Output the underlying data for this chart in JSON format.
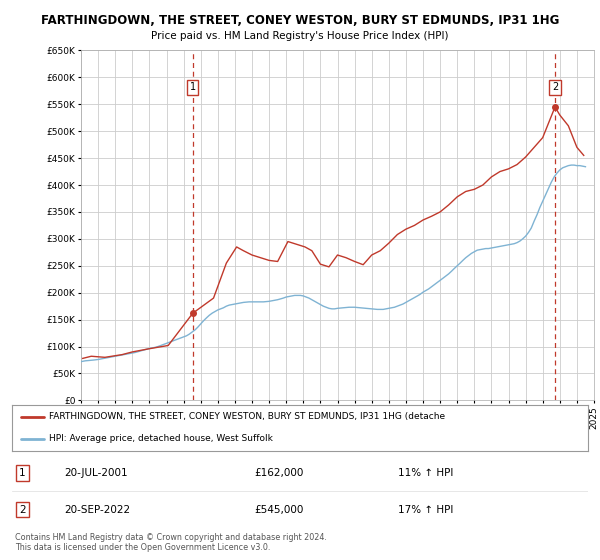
{
  "title": "FARTHINGDOWN, THE STREET, CONEY WESTON, BURY ST EDMUNDS, IP31 1HG",
  "subtitle": "Price paid vs. HM Land Registry's House Price Index (HPI)",
  "legend_line1": "FARTHINGDOWN, THE STREET, CONEY WESTON, BURY ST EDMUNDS, IP31 1HG (detache",
  "legend_line2": "HPI: Average price, detached house, West Suffolk",
  "annotation1_label": "1",
  "annotation1_date": "20-JUL-2001",
  "annotation1_price": "£162,000",
  "annotation1_hpi": "11% ↑ HPI",
  "annotation2_label": "2",
  "annotation2_date": "20-SEP-2022",
  "annotation2_price": "£545,000",
  "annotation2_hpi": "17% ↑ HPI",
  "footer1": "Contains HM Land Registry data © Crown copyright and database right 2024.",
  "footer2": "This data is licensed under the Open Government Licence v3.0.",
  "ylim": [
    0,
    650000
  ],
  "yticks": [
    0,
    50000,
    100000,
    150000,
    200000,
    250000,
    300000,
    350000,
    400000,
    450000,
    500000,
    550000,
    600000,
    650000
  ],
  "bg_color": "#ffffff",
  "grid_color": "#cccccc",
  "hpi_color": "#7fb3d3",
  "price_color": "#c0392b",
  "dashed_color": "#c0392b",
  "hpi_x": [
    1995.0,
    1995.08,
    1995.17,
    1995.25,
    1995.33,
    1995.42,
    1995.5,
    1995.58,
    1995.67,
    1995.75,
    1995.83,
    1995.92,
    1996.0,
    1996.08,
    1996.17,
    1996.25,
    1996.33,
    1996.42,
    1996.5,
    1996.58,
    1996.67,
    1996.75,
    1996.83,
    1996.92,
    1997.0,
    1997.08,
    1997.17,
    1997.25,
    1997.33,
    1997.42,
    1997.5,
    1997.58,
    1997.67,
    1997.75,
    1997.83,
    1997.92,
    1998.0,
    1998.17,
    1998.33,
    1998.5,
    1998.67,
    1998.83,
    1999.0,
    1999.17,
    1999.33,
    1999.5,
    1999.67,
    1999.83,
    2000.0,
    2000.17,
    2000.33,
    2000.5,
    2000.67,
    2000.83,
    2001.0,
    2001.17,
    2001.33,
    2001.5,
    2001.67,
    2001.83,
    2002.0,
    2002.17,
    2002.33,
    2002.5,
    2002.67,
    2002.83,
    2003.0,
    2003.17,
    2003.33,
    2003.5,
    2003.67,
    2003.83,
    2004.0,
    2004.17,
    2004.33,
    2004.5,
    2004.67,
    2004.83,
    2005.0,
    2005.17,
    2005.33,
    2005.5,
    2005.67,
    2005.83,
    2006.0,
    2006.17,
    2006.33,
    2006.5,
    2006.67,
    2006.83,
    2007.0,
    2007.17,
    2007.33,
    2007.5,
    2007.67,
    2007.83,
    2008.0,
    2008.17,
    2008.33,
    2008.5,
    2008.67,
    2008.83,
    2009.0,
    2009.17,
    2009.33,
    2009.5,
    2009.67,
    2009.83,
    2010.0,
    2010.17,
    2010.33,
    2010.5,
    2010.67,
    2010.83,
    2011.0,
    2011.17,
    2011.33,
    2011.5,
    2011.67,
    2011.83,
    2012.0,
    2012.17,
    2012.33,
    2012.5,
    2012.67,
    2012.83,
    2013.0,
    2013.17,
    2013.33,
    2013.5,
    2013.67,
    2013.83,
    2014.0,
    2014.17,
    2014.33,
    2014.5,
    2014.67,
    2014.83,
    2015.0,
    2015.17,
    2015.33,
    2015.5,
    2015.67,
    2015.83,
    2016.0,
    2016.17,
    2016.33,
    2016.5,
    2016.67,
    2016.83,
    2017.0,
    2017.17,
    2017.33,
    2017.5,
    2017.67,
    2017.83,
    2018.0,
    2018.17,
    2018.33,
    2018.5,
    2018.67,
    2018.83,
    2019.0,
    2019.17,
    2019.33,
    2019.5,
    2019.67,
    2019.83,
    2020.0,
    2020.17,
    2020.33,
    2020.5,
    2020.67,
    2020.83,
    2021.0,
    2021.17,
    2021.33,
    2021.5,
    2021.67,
    2021.83,
    2022.0,
    2022.17,
    2022.33,
    2022.5,
    2022.67,
    2022.83,
    2023.0,
    2023.17,
    2023.33,
    2023.5,
    2023.67,
    2023.83,
    2024.0,
    2024.17,
    2024.33,
    2024.5
  ],
  "hpi_y": [
    72000,
    72500,
    73000,
    73500,
    73800,
    74000,
    74200,
    74500,
    74800,
    75000,
    75300,
    75600,
    76000,
    76500,
    77000,
    77500,
    78000,
    78500,
    79000,
    79500,
    80000,
    80500,
    81000,
    81500,
    82000,
    82500,
    83000,
    83500,
    84000,
    84500,
    85000,
    85500,
    86000,
    86500,
    87000,
    87500,
    88000,
    89000,
    90500,
    92000,
    93500,
    95000,
    96500,
    97500,
    98500,
    100000,
    102000,
    104000,
    106000,
    108000,
    110000,
    112000,
    114000,
    116000,
    118000,
    120000,
    123000,
    127000,
    131000,
    136000,
    142000,
    148000,
    153000,
    158000,
    162000,
    165000,
    168000,
    170000,
    172000,
    175000,
    177000,
    178000,
    179000,
    180000,
    181000,
    182000,
    182500,
    183000,
    183000,
    183000,
    183000,
    183000,
    183000,
    183500,
    184000,
    185000,
    186000,
    187000,
    188500,
    190000,
    192000,
    193000,
    194000,
    195000,
    195000,
    195000,
    194000,
    192000,
    190000,
    187000,
    184000,
    181000,
    178000,
    175000,
    173000,
    171000,
    170000,
    170000,
    171000,
    171500,
    172000,
    172500,
    173000,
    173000,
    173000,
    172500,
    172000,
    171500,
    171000,
    170500,
    170000,
    169500,
    169000,
    169000,
    169000,
    170000,
    171000,
    172000,
    173000,
    175000,
    177000,
    179000,
    182000,
    185000,
    188000,
    191000,
    194000,
    197000,
    201000,
    204000,
    207000,
    211000,
    215000,
    219000,
    223000,
    227000,
    231000,
    235000,
    240000,
    245000,
    250000,
    255000,
    260000,
    265000,
    269000,
    273000,
    276000,
    279000,
    280000,
    281000,
    282000,
    282000,
    283000,
    284000,
    285000,
    286000,
    287000,
    288000,
    289000,
    290000,
    291000,
    293000,
    296000,
    300000,
    305000,
    312000,
    320000,
    333000,
    345000,
    358000,
    370000,
    382000,
    393000,
    405000,
    415000,
    422000,
    428000,
    432000,
    434000,
    436000,
    437000,
    437000,
    436000,
    436000,
    435000,
    434000
  ],
  "price_x": [
    1995.1,
    1995.6,
    1996.4,
    1997.4,
    1998.0,
    1999.0,
    2000.1,
    2001.54,
    2002.75,
    2003.5,
    2004.1,
    2004.5,
    2005.0,
    2005.5,
    2006.0,
    2006.5,
    2007.1,
    2008.1,
    2008.5,
    2009.0,
    2009.5,
    2010.0,
    2010.5,
    2011.0,
    2011.5,
    2012.0,
    2012.5,
    2013.0,
    2013.5,
    2014.0,
    2014.5,
    2015.0,
    2015.5,
    2016.0,
    2016.5,
    2017.0,
    2017.5,
    2018.0,
    2018.5,
    2019.0,
    2019.5,
    2020.0,
    2020.5,
    2021.0,
    2021.5,
    2022.0,
    2022.72,
    2023.0,
    2023.5,
    2024.0,
    2024.4
  ],
  "price_y": [
    78000,
    82000,
    80000,
    85000,
    90000,
    96000,
    102000,
    162000,
    190000,
    255000,
    285000,
    278000,
    270000,
    265000,
    260000,
    258000,
    295000,
    285000,
    278000,
    253000,
    248000,
    270000,
    265000,
    258000,
    252000,
    270000,
    278000,
    292000,
    308000,
    318000,
    325000,
    335000,
    342000,
    350000,
    363000,
    378000,
    388000,
    392000,
    400000,
    415000,
    425000,
    430000,
    438000,
    452000,
    470000,
    488000,
    545000,
    530000,
    510000,
    470000,
    455000
  ],
  "sale1_x": 2001.54,
  "sale1_y": 162000,
  "sale2_x": 2022.72,
  "sale2_y": 545000,
  "xmin": 1995,
  "xmax": 2025
}
